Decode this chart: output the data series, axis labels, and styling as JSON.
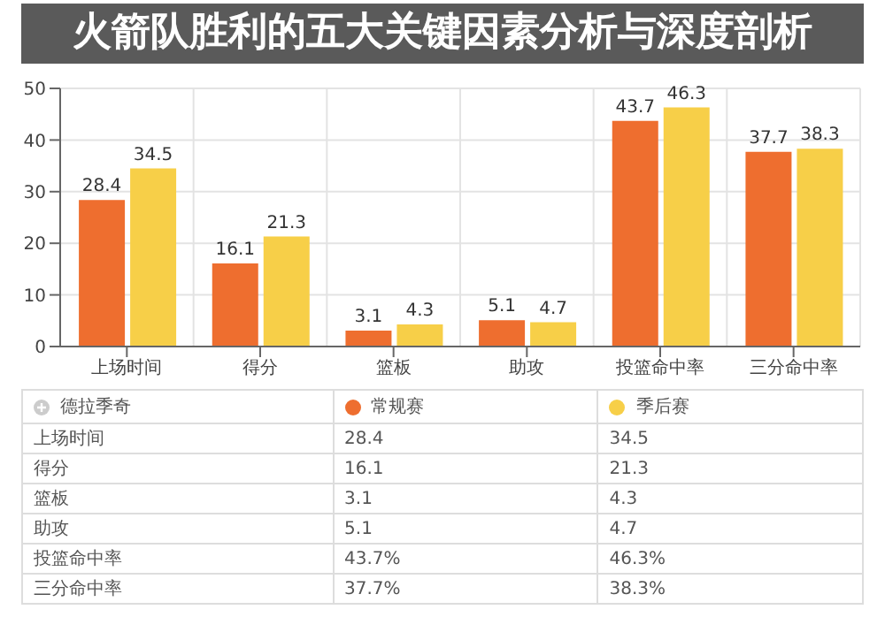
{
  "chart_data": {
    "type": "bar",
    "title": "火箭队胜利的五大关键因素分析与深度剖析",
    "legend_title": "德拉季奇",
    "categories": [
      "上场时间",
      "得分",
      "篮板",
      "助攻",
      "投篮命中率",
      "三分命中率"
    ],
    "series": [
      {
        "name": "常规赛",
        "color": "#ee6e2f",
        "values": [
          28.4,
          16.1,
          3.1,
          5.1,
          43.7,
          37.7
        ]
      },
      {
        "name": "季后赛",
        "color": "#f7cf48",
        "values": [
          34.5,
          21.3,
          4.3,
          4.7,
          46.3,
          38.3
        ]
      }
    ],
    "annotations": [
      "28.4",
      "34.5",
      "16.1",
      "21.3",
      "3.1",
      "4.3",
      "5.1",
      "4.7",
      "43.7%",
      "46.3%",
      "37.7%",
      "38.3%"
    ],
    "ylim": [
      0,
      50
    ],
    "yticks": [
      0,
      10,
      20,
      30,
      40,
      50
    ],
    "grid": true,
    "data_labels": true,
    "legend": "bottom"
  }
}
